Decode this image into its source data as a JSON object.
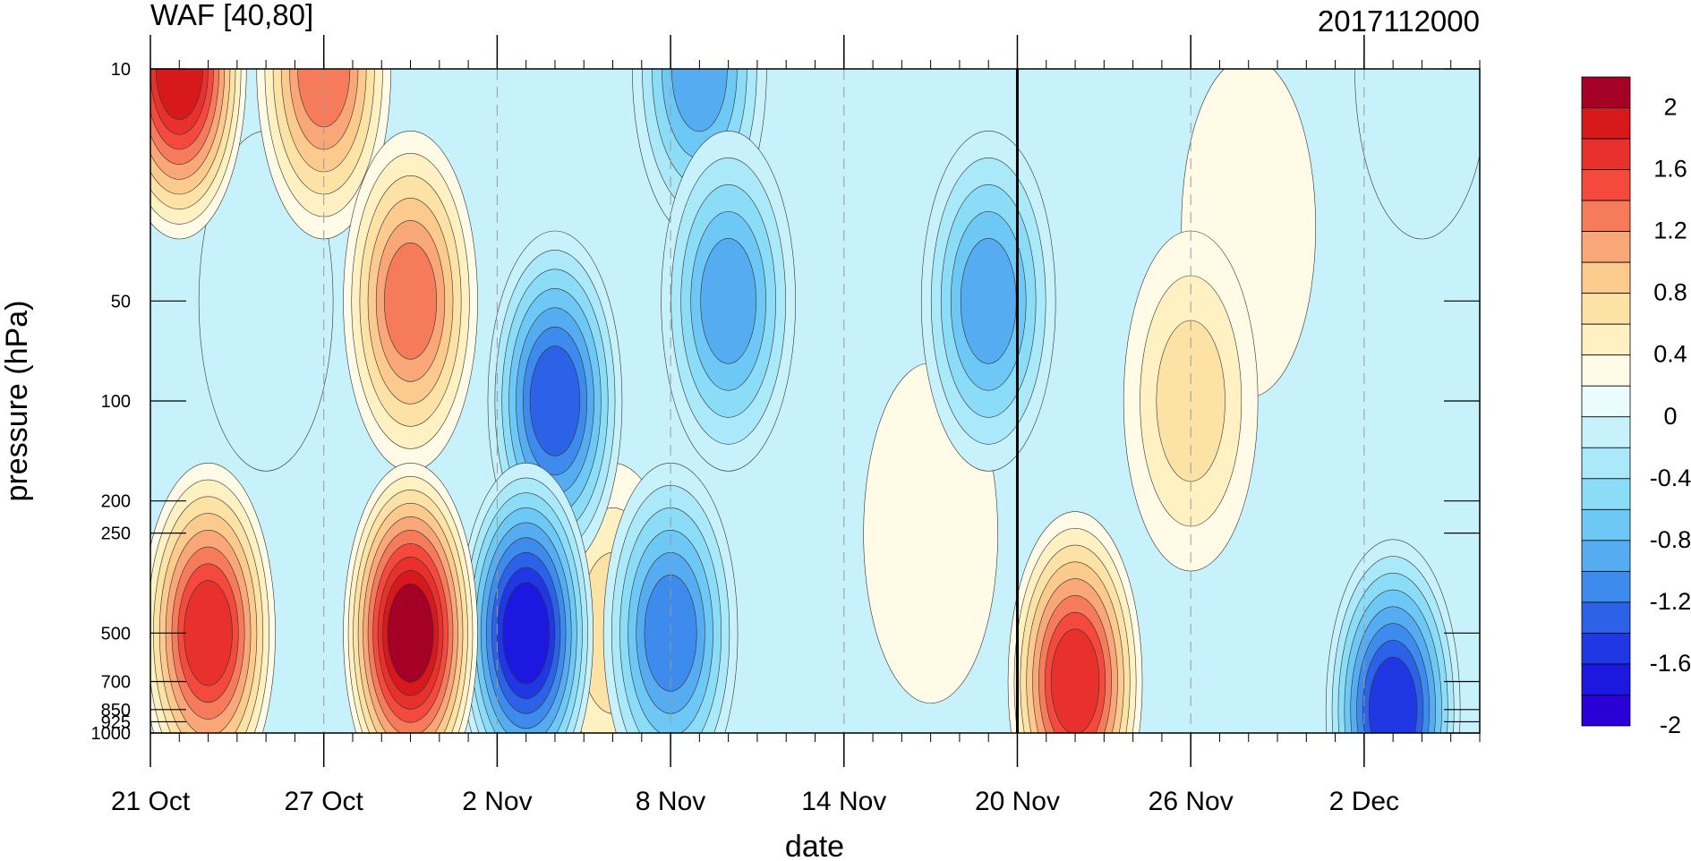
{
  "chart_data": {
    "type": "heatmap",
    "title_left": "WAF [40,80]",
    "title_right": "2017112000",
    "xlabel": "date",
    "ylabel": "pressure (hPa)",
    "x_ticks": [
      "21 Oct",
      "27 Oct",
      "2 Nov",
      "8 Nov",
      "14 Nov",
      "20 Nov",
      "26 Nov",
      "2 Dec"
    ],
    "x_range": [
      "21 Oct",
      "6 Dec"
    ],
    "y_scale": "log",
    "y_reversed": true,
    "y_range": [
      10,
      1000
    ],
    "y_ticks": [
      10,
      50,
      100,
      200,
      250,
      500,
      700,
      850,
      925,
      1000
    ],
    "y_tick_labels": [
      "10",
      "50",
      "100",
      "200",
      "250",
      "500",
      "700",
      "850",
      "925",
      "1000"
    ],
    "vertical_marker": "20 Nov",
    "colorbar": {
      "labels": [
        "2",
        "1.6",
        "1.2",
        "0.8",
        "0.4",
        "0",
        "-0.4",
        "-0.8",
        "-1.2",
        "-1.6",
        "-2"
      ],
      "colors": [
        "#a50026",
        "#d7191c",
        "#e8312c",
        "#f4493c",
        "#f57b5a",
        "#f9a678",
        "#fdca8e",
        "#fde2a6",
        "#fff1c2",
        "#fffbe6",
        "#eafcfe",
        "#c8f2fb",
        "#a9e9f9",
        "#8bdcf7",
        "#6ec8f5",
        "#55acf1",
        "#3d8bec",
        "#2b62e8",
        "#2037e4",
        "#1c18e0",
        "#2a00d6"
      ]
    },
    "field_description_points": [
      {
        "date": "22 Oct",
        "pressure": 10,
        "value": 1.9
      },
      {
        "date": "23 Oct",
        "pressure": 500,
        "value": 1.6
      },
      {
        "date": "25 Oct",
        "pressure": 50,
        "value": -0.2
      },
      {
        "date": "27 Oct",
        "pressure": 10,
        "value": 1.2
      },
      {
        "date": "30 Oct",
        "pressure": 500,
        "value": 2.0
      },
      {
        "date": "30 Oct",
        "pressure": 50,
        "value": 1.2
      },
      {
        "date": "3 Nov",
        "pressure": 500,
        "value": -1.7
      },
      {
        "date": "4 Nov",
        "pressure": 100,
        "value": -1.4
      },
      {
        "date": "6 Nov",
        "pressure": 500,
        "value": 0.6
      },
      {
        "date": "8 Nov",
        "pressure": 500,
        "value": -1.2
      },
      {
        "date": "9 Nov",
        "pressure": 10,
        "value": -1.0
      },
      {
        "date": "10 Nov",
        "pressure": 50,
        "value": -1.0
      },
      {
        "date": "17 Nov",
        "pressure": 250,
        "value": 0.2
      },
      {
        "date": "19 Nov",
        "pressure": 50,
        "value": -0.9
      },
      {
        "date": "22 Nov",
        "pressure": 700,
        "value": 1.6
      },
      {
        "date": "26 Nov",
        "pressure": 100,
        "value": 0.6
      },
      {
        "date": "28 Nov",
        "pressure": 30,
        "value": 0.1
      },
      {
        "date": "3 Dec",
        "pressure": 850,
        "value": -1.6
      },
      {
        "date": "4 Dec",
        "pressure": 10,
        "value": -0.3
      }
    ]
  },
  "colors": {
    "axis": "#000000",
    "grid_dash": "#9a9a9a"
  }
}
